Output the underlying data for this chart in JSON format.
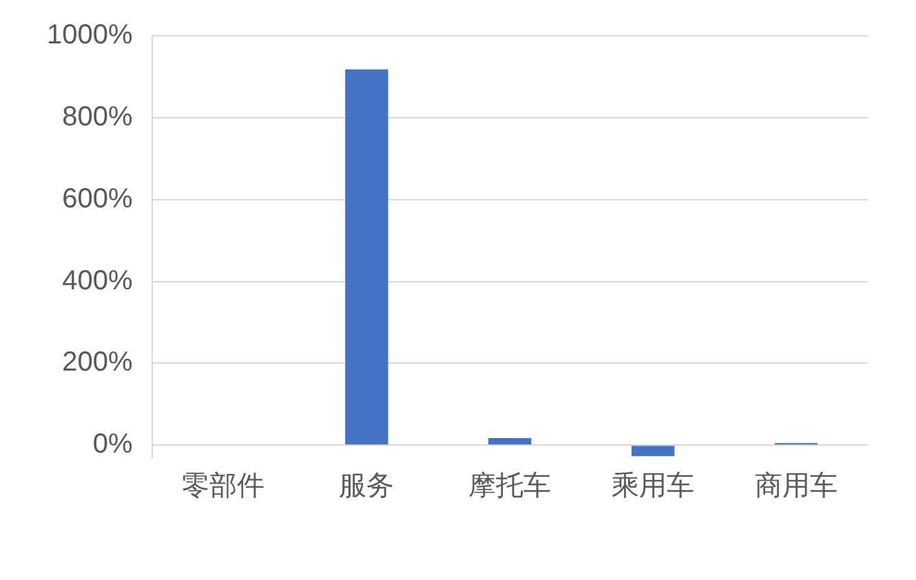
{
  "chart_data": {
    "type": "bar",
    "categories": [
      "零部件",
      "服务",
      "摩托车",
      "乘用车",
      "商用车"
    ],
    "values": [
      0,
      918,
      17,
      -27,
      5
    ],
    "color": "#4472c4",
    "ylim": [
      -30,
      1000
    ],
    "yticks": [
      {
        "value": 0,
        "label": "0%"
      },
      {
        "value": 200,
        "label": "200%"
      },
      {
        "value": 400,
        "label": "400%"
      },
      {
        "value": 600,
        "label": "600%"
      },
      {
        "value": 800,
        "label": "800%"
      },
      {
        "value": 1000,
        "label": "1000%"
      }
    ],
    "grid": "y",
    "legend": false
  }
}
